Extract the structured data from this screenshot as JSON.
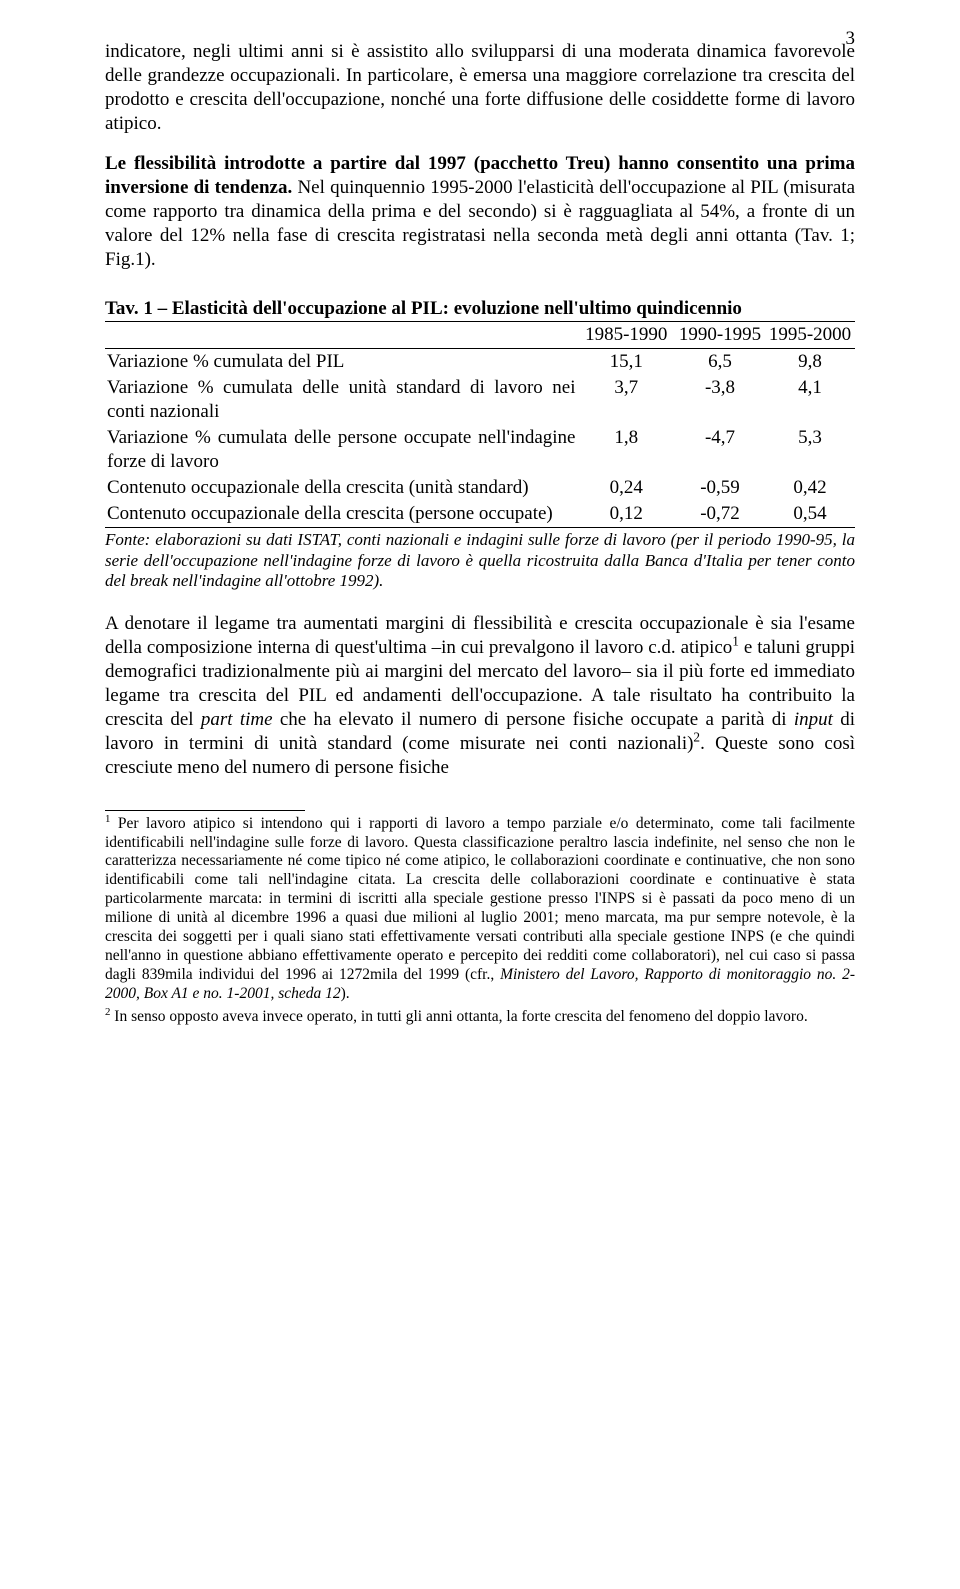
{
  "page_number": "3",
  "paragraphs": {
    "p1": "indicatore, negli ultimi anni si è assistito allo svilupparsi di una moderata dinamica favorevole delle grandezze occupazionali. In particolare, è emersa una maggiore correlazione tra crescita del prodotto e crescita dell'occupazione, nonché una forte diffusione delle cosiddette forme di lavoro atipico.",
    "p2_bold": "Le flessibilità introdotte a partire dal 1997 (pacchetto Treu) hanno consentito una prima inversione di tendenza.",
    "p2_rest": " Nel quinquennio 1995-2000 l'elasticità dell'occupazione al PIL (misurata come rapporto tra dinamica della prima e del secondo) si è ragguagliata al 54%, a fronte di un valore del 12% nella fase di crescita registratasi nella seconda metà degli anni ottanta (Tav. 1; Fig.1).",
    "p3a": "A denotare il legame tra aumentati margini di flessibilità e crescita occupazionale è sia l'esame della composizione interna di quest'ultima –in cui prevalgono il lavoro c.d. atipico",
    "p3b": " e taluni gruppi demografici tradizionalmente più ai margini del mercato del lavoro– sia il più forte ed immediato legame tra crescita del PIL ed andamenti dell'occupazione. A tale risultato ha contribuito la crescita del ",
    "p3_parttime": "part time",
    "p3c": " che ha elevato il numero di persone fisiche occupate a parità di ",
    "p3_input": "input",
    "p3d": " di lavoro in termini di unità standard (come misurate nei conti nazionali)",
    "p3e": ". Queste sono così cresciute meno del numero di persone fisiche"
  },
  "table": {
    "caption": "Tav. 1 – Elasticità dell'occupazione al PIL: evoluzione nell'ultimo quindicennio",
    "columns": [
      "",
      "1985-1990",
      "1990-1995",
      "1995-2000"
    ],
    "col_widths": [
      "63%",
      "13%",
      "12%",
      "12%"
    ],
    "rows": [
      {
        "label": "Variazione % cumulata del PIL",
        "c1": "15,1",
        "c2": "6,5",
        "c3": "9,8"
      },
      {
        "label": "Variazione % cumulata delle unità standard di lavoro nei conti nazionali",
        "c1": "3,7",
        "c2": "-3,8",
        "c3": "4,1"
      },
      {
        "label": "Variazione % cumulata delle persone occupate nell'indagine forze di lavoro",
        "c1": "1,8",
        "c2": "-4,7",
        "c3": "5,3"
      },
      {
        "label": "Contenuto occupazionale della crescita (unità standard)",
        "c1": "0,24",
        "c2": "-0,59",
        "c3": "0,42"
      },
      {
        "label": "Contenuto occupazionale della crescita (persone occupate)",
        "c1": "0,12",
        "c2": "-0,72",
        "c3": "0,54"
      }
    ],
    "note": "Fonte: elaborazioni su dati ISTAT, conti nazionali e indagini sulle forze di lavoro (per il periodo 1990-95, la serie dell'occupazione nell'indagine forze di lavoro è quella ricostruita dalla Banca d'Italia per tener conto del break nell'indagine all'ottobre 1992)."
  },
  "footnotes": {
    "f1_marker": "1",
    "f1a": " Per lavoro atipico si intendono qui i rapporti di lavoro a tempo parziale e/o determinato, come tali facilmente identificabili nell'indagine sulle forze di lavoro. Questa classificazione peraltro lascia indefinite, nel senso che non le caratterizza necessariamente né come tipico né come atipico, le collaborazioni coordinate e continuative, che non sono identificabili come tali nell'indagine citata. La crescita delle collaborazioni coordinate e continuative è stata particolarmente marcata: in termini di iscritti alla speciale gestione presso l'INPS si è passati da poco meno di un milione di unità al dicembre 1996 a quasi due milioni al luglio 2001; meno marcata, ma pur sempre notevole, è la crescita  dei soggetti per i quali siano stati effettivamente versati contributi alla speciale gestione INPS (e che quindi nell'anno in questione abbiano effettivamente operato e percepito dei redditi come collaboratori), nel cui caso si passa dagli 839mila individui del 1996 ai 1272mila del 1999 (cfr., ",
    "f1_italic": "Ministero del Lavoro, Rapporto di monitoraggio no. 2-2000, Box A1 e no. 1-2001, scheda 12",
    "f1b": ").",
    "f2_marker": "2",
    "f2": " In senso opposto aveva invece operato, in tutti gli anni ottanta, la forte crescita del fenomeno del doppio lavoro."
  },
  "colors": {
    "text": "#000000",
    "background": "#ffffff",
    "rule": "#000000"
  },
  "typography": {
    "body_fontsize_pt": 14,
    "footnote_fontsize_pt": 11,
    "font_family": "Times New Roman, serif"
  }
}
